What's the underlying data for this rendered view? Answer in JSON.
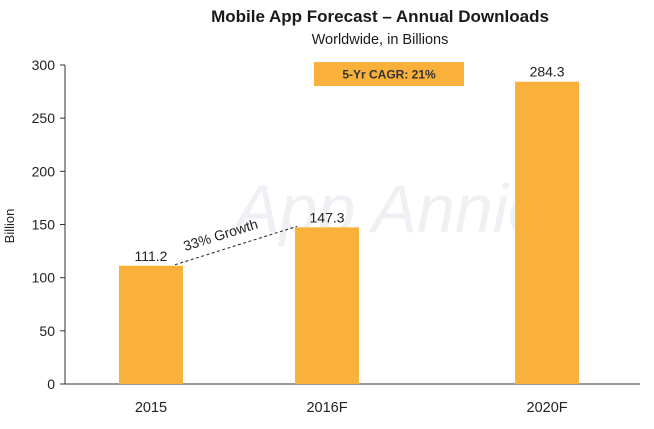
{
  "chart_data": {
    "type": "bar",
    "title": "Mobile App Forecast – Annual Downloads",
    "subtitle": "Worldwide, in Billions",
    "xlabel": "",
    "ylabel": "Billion",
    "ylim": [
      0,
      300
    ],
    "yticks": [
      0,
      50,
      100,
      150,
      200,
      250,
      300
    ],
    "categories": [
      "2015",
      "2016F",
      "2020F"
    ],
    "values": [
      111.2,
      147.3,
      284.3
    ],
    "category_positions": [
      0,
      1.2,
      2.7
    ],
    "data_labels": [
      "111.2",
      "147.3",
      "284.3"
    ],
    "bar_color": "#F9B13C",
    "annotations": {
      "cagr": "5-Yr CAGR: 21%",
      "growth": "33% Growth",
      "growth_from": "2015",
      "growth_to": "2016F"
    },
    "watermark": "App Annie",
    "grid": false
  }
}
